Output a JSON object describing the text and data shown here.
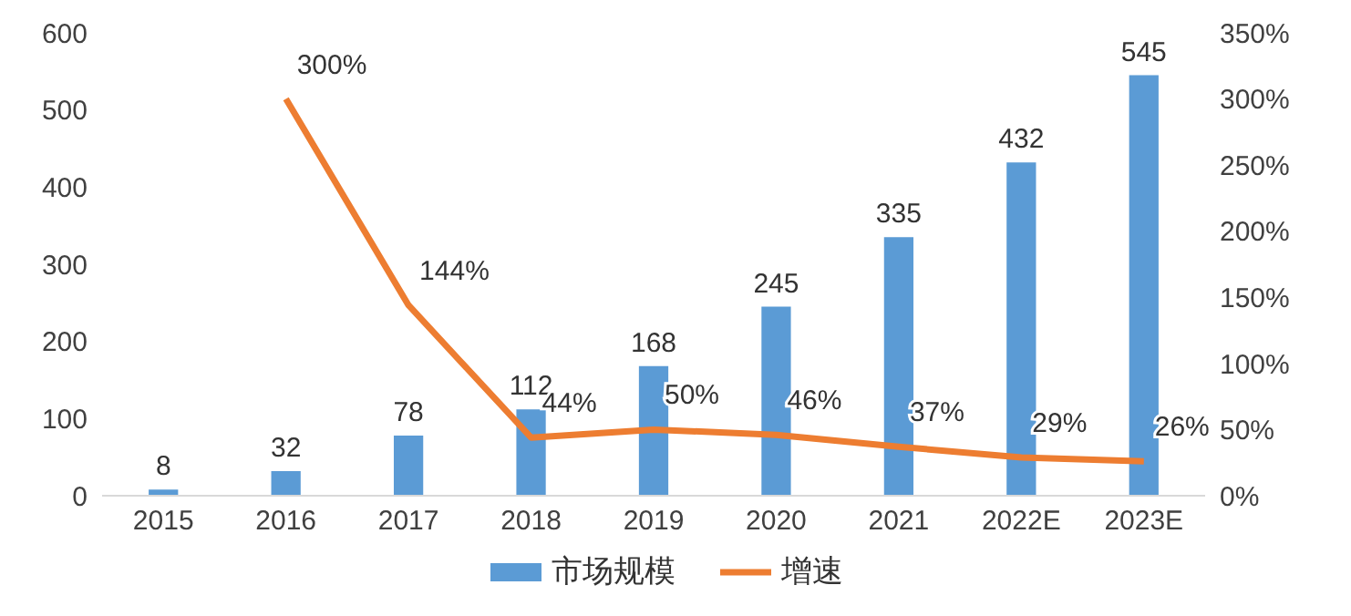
{
  "chart_data": {
    "type": "bar",
    "categories": [
      "2015",
      "2016",
      "2017",
      "2018",
      "2019",
      "2020",
      "2021",
      "2022E",
      "2023E"
    ],
    "series": [
      {
        "name": "市场规模",
        "color": "#5b9bd5",
        "values": [
          8,
          32,
          78,
          112,
          168,
          245,
          335,
          432,
          545
        ],
        "value_labels": [
          "8",
          "32",
          "78",
          "112",
          "168",
          "245",
          "335",
          "432",
          "545"
        ]
      },
      {
        "name": "增速",
        "type": "line",
        "axis": "y2",
        "color": "#ed7d31",
        "values": [
          null,
          300,
          144,
          44,
          50,
          46,
          37,
          29,
          26
        ],
        "value_labels": [
          null,
          "300%",
          "144%",
          "44%",
          "50%",
          "46%",
          "37%",
          "29%",
          "26%"
        ]
      }
    ],
    "ylim": [
      0,
      600
    ],
    "yticks": [
      0,
      100,
      200,
      300,
      400,
      500,
      600
    ],
    "y2lim": [
      0,
      350
    ],
    "y2ticks": [
      {
        "value": 0,
        "label": "0%"
      },
      {
        "value": 50,
        "label": "50%"
      },
      {
        "value": 100,
        "label": "100%"
      },
      {
        "value": 150,
        "label": "150%"
      },
      {
        "value": 200,
        "label": "200%"
      },
      {
        "value": 250,
        "label": "250%"
      },
      {
        "value": 300,
        "label": "300%"
      },
      {
        "value": 350,
        "label": "350%"
      }
    ],
    "legend": "bottom",
    "grid": false,
    "marker": "none",
    "line_style": "solid"
  }
}
